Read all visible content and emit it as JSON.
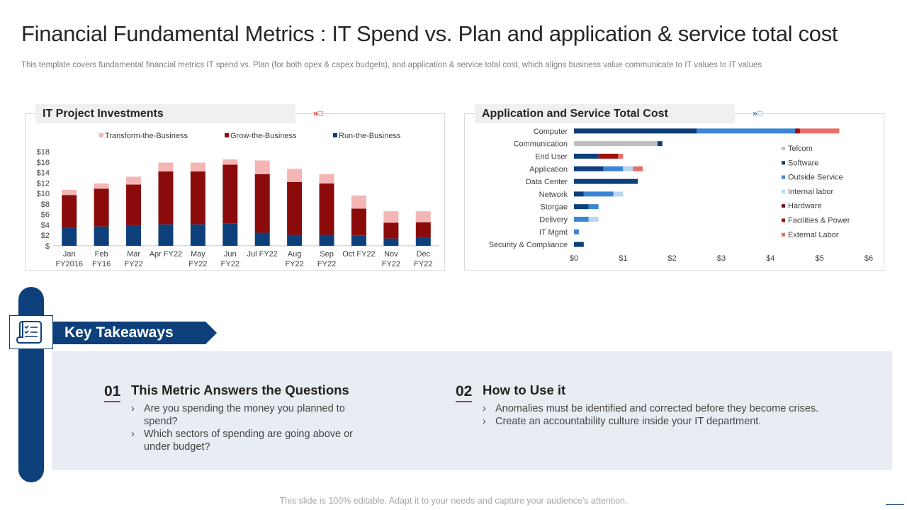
{
  "header": {
    "title": "Financial Fundamental Metrics : IT Spend vs. Plan and application & service total cost",
    "subtitle": "This template covers fundamental financial metrics IT spend vs. Plan (for both opex & capex budgets), and application & service total cost, which aligns business value communicate  to IT values to IT values"
  },
  "colors": {
    "navy": "#0d3f7a",
    "dark_red": "#8b0b0b",
    "light_pink": "#f4b6b4",
    "telcom": "#bfbfbf",
    "software": "#0d3f7a",
    "outside_service": "#3d85d4",
    "internal_labor": "#bcd6f1",
    "hardware": "#7a0d0d",
    "facilities_power": "#a01010",
    "external_labor": "#e8706a"
  },
  "chart_data": [
    {
      "type": "bar",
      "stacked": true,
      "title": "IT Project Investments",
      "categories": [
        "Jan FY2016",
        "Feb FY16",
        "Mar FY22",
        "Apr FY22",
        "May FY22",
        "Jun FY22",
        "Jul FY22",
        "Aug FY22",
        "Sep FY22",
        "Oct FY22",
        "Nov FY22",
        "Dec FY22"
      ],
      "series": [
        {
          "name": "Run-the-Business",
          "color": "#0d3f7a",
          "values": [
            3.4,
            3.7,
            3.8,
            4.1,
            4.1,
            4.3,
            2.5,
            2.1,
            2.1,
            2.0,
            1.4,
            1.5
          ]
        },
        {
          "name": "Grow-the-Business",
          "color": "#8b0b0b",
          "values": [
            6.3,
            7.2,
            7.9,
            10.1,
            10.1,
            11.2,
            11.2,
            10.1,
            9.8,
            5.1,
            3.0,
            3.0
          ]
        },
        {
          "name": "Transform-the-Business",
          "color": "#f4b6b4",
          "values": [
            1.0,
            1.0,
            1.5,
            1.7,
            1.7,
            1.0,
            2.6,
            2.5,
            1.8,
            2.5,
            2.2,
            2.1
          ]
        }
      ],
      "y_ticks": [
        "$18",
        "$16",
        "$14",
        "$12",
        "$10",
        "$8",
        "$6",
        "$4",
        "$2",
        "$"
      ],
      "ylim": [
        0,
        18
      ],
      "legend": "top"
    },
    {
      "type": "bar",
      "orientation": "horizontal",
      "stacked": true,
      "title": "Application and Service Total Cost",
      "categories": [
        "Computer",
        "Communication",
        "End User",
        "Application",
        "Data Center",
        "Network",
        "Storgae",
        "Delivery",
        "IT Mgmt",
        "Security & Compliance"
      ],
      "series": [
        {
          "name": "Telcom",
          "color": "#bfbfbf",
          "values": [
            0,
            1.7,
            0,
            0,
            0,
            0,
            0,
            0,
            0,
            0
          ]
        },
        {
          "name": "Software",
          "color": "#0d3f7a",
          "values": [
            2.5,
            0.1,
            0.5,
            0.6,
            1.3,
            0.2,
            0.3,
            0,
            0,
            0.2
          ]
        },
        {
          "name": "Outside Service",
          "color": "#3d85d4",
          "values": [
            2.0,
            0,
            0,
            0.4,
            0,
            0.6,
            0.2,
            0.3,
            0.1,
            0
          ]
        },
        {
          "name": "Internal labor",
          "color": "#bcd6f1",
          "values": [
            0,
            0,
            0,
            0.2,
            0,
            0.2,
            0,
            0.2,
            0,
            0
          ]
        },
        {
          "name": "Hardware",
          "color": "#7a0d0d",
          "values": [
            0,
            0,
            0,
            0,
            0,
            0,
            0,
            0,
            0,
            0
          ]
        },
        {
          "name": "Facilities & Power",
          "color": "#a01010",
          "values": [
            0.1,
            0,
            0.4,
            0,
            0,
            0,
            0,
            0,
            0,
            0
          ]
        },
        {
          "name": "External Labor",
          "color": "#e8706a",
          "values": [
            0.8,
            0,
            0.1,
            0.2,
            0,
            0,
            0,
            0,
            0,
            0
          ]
        }
      ],
      "x_ticks": [
        "$0",
        "$1",
        "$2",
        "$3",
        "$4",
        "$5",
        "$6"
      ],
      "xlim": [
        0,
        6
      ],
      "legend": "right"
    }
  ],
  "takeaways": {
    "heading": "Key Takeaways",
    "items": [
      {
        "number": "01",
        "title": "This Metric Answers the Questions",
        "bullets": [
          "Are you spending the money you planned to spend?",
          "Which sectors of spending are going above or under budget?"
        ]
      },
      {
        "number": "02",
        "title": "How to Use it",
        "bullets": [
          "Anomalies must be identified and corrected before they become crises.",
          "Create an accountability culture inside your IT department."
        ]
      }
    ]
  },
  "footer": "This slide is 100% editable. Adapt it to your needs and capture your audience's attention."
}
